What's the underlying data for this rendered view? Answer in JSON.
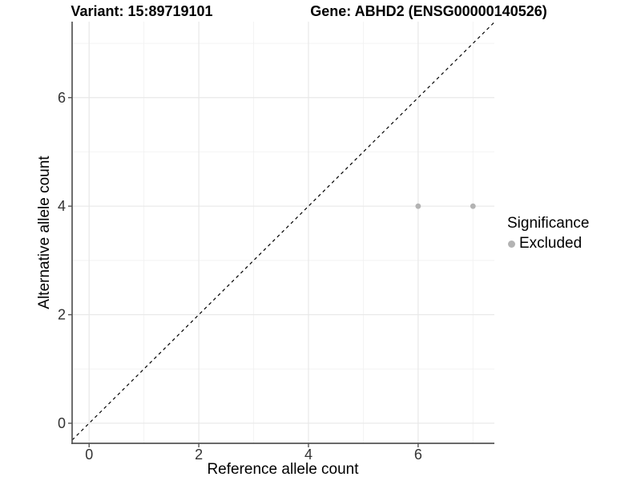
{
  "header": {
    "variant_title": "Variant: 15:89719101",
    "gene_title": "Gene: ABHD2 (ENSG00000140526)"
  },
  "legend": {
    "title": "Significance",
    "items": [
      {
        "label": "Excluded",
        "color": "#b3b3b3"
      }
    ]
  },
  "chart_data": {
    "type": "scatter",
    "title": "Variant: 15:89719101   Gene: ABHD2 (ENSG00000140526)",
    "xlabel": "Reference allele count",
    "ylabel": "Alternative allele count",
    "points": [
      {
        "x": 6,
        "y": 4,
        "significance": "Excluded"
      },
      {
        "x": 7,
        "y": 4,
        "significance": "Excluded"
      }
    ],
    "x_ticks": [
      0,
      2,
      4,
      6
    ],
    "x_tick_labels": [
      "0",
      "2",
      "4",
      "6"
    ],
    "y_ticks": [
      0,
      2,
      4,
      6
    ],
    "y_tick_labels": [
      "0",
      "2",
      "4",
      "6"
    ],
    "x_minor": [
      1,
      3,
      5,
      7
    ],
    "y_minor": [
      1,
      3,
      5,
      7
    ],
    "xlim": [
      -0.31,
      7.39
    ],
    "ylim": [
      -0.37,
      7.4
    ],
    "grid": true,
    "legend_position": "right",
    "identity_line": {
      "slope": 1,
      "intercept": 0,
      "style": "dashed"
    },
    "colors": {
      "background": "#ffffff",
      "point": "#b3b3b3",
      "grid_major": "#e8e8e8",
      "grid_minor": "#f2f2f2",
      "axis": "#545454",
      "tick_text": "#333333",
      "abline": "#000000"
    }
  }
}
